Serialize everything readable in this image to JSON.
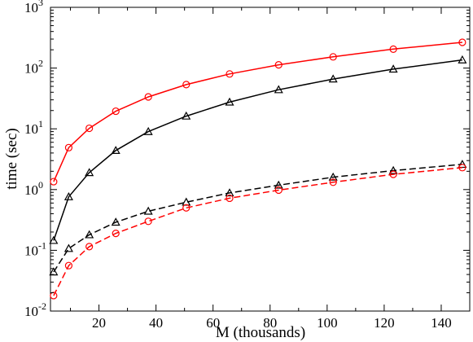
{
  "chart_data": {
    "type": "line",
    "title": "",
    "xlabel": "M (thousands)",
    "ylabel": "time (sec)",
    "xlim": [
      3,
      150
    ],
    "ylim": [
      0.01,
      1000
    ],
    "yscale": "log",
    "grid": false,
    "legend": "none",
    "x_ticks": [
      20,
      40,
      60,
      80,
      100,
      120,
      140
    ],
    "x_tick_labels": [
      "20",
      "40",
      "60",
      "80",
      "100",
      "120",
      "140"
    ],
    "y_ticks": [
      0.01,
      0.1,
      1,
      10,
      100,
      1000
    ],
    "y_tick_labels": [
      {
        "base": "10",
        "exp": "-2"
      },
      {
        "base": "10",
        "exp": "-1"
      },
      {
        "base": "10",
        "exp": "0"
      },
      {
        "base": "10",
        "exp": "1"
      },
      {
        "base": "10",
        "exp": "2"
      },
      {
        "base": "10",
        "exp": "3"
      }
    ],
    "series": [
      {
        "color": "#ff0000",
        "dash": "solid",
        "marker": "circle",
        "x": [
          4.1,
          9.4,
          16.6,
          25.9,
          37.3,
          50.6,
          65.8,
          83.0,
          102.1,
          123.2,
          147.4
        ],
        "y": [
          1.35,
          4.9,
          10.2,
          19.5,
          33.5,
          53.5,
          80,
          113,
          153,
          205,
          265
        ]
      },
      {
        "color": "#000000",
        "dash": "solid",
        "marker": "triangle",
        "x": [
          4.1,
          9.4,
          16.6,
          25.9,
          37.3,
          50.6,
          65.8,
          83.0,
          102.1,
          123.2,
          147.4
        ],
        "y": [
          0.145,
          0.76,
          1.9,
          4.4,
          9.0,
          16.2,
          27.5,
          44,
          66,
          96,
          136
        ]
      },
      {
        "color": "#000000",
        "dash": "dashed",
        "marker": "triangle",
        "x": [
          4.1,
          9.4,
          16.6,
          25.9,
          37.3,
          50.6,
          65.8,
          83.0,
          102.1,
          123.2,
          147.4
        ],
        "y": [
          0.044,
          0.107,
          0.18,
          0.29,
          0.44,
          0.62,
          0.88,
          1.18,
          1.6,
          2.05,
          2.6
        ]
      },
      {
        "color": "#ff0000",
        "dash": "dashed",
        "marker": "circle",
        "x": [
          4.1,
          9.4,
          16.6,
          25.9,
          37.3,
          50.6,
          65.8,
          83.0,
          102.1,
          123.2,
          147.4
        ],
        "y": [
          0.018,
          0.056,
          0.115,
          0.19,
          0.3,
          0.5,
          0.72,
          0.98,
          1.32,
          1.78,
          2.3
        ]
      }
    ]
  }
}
